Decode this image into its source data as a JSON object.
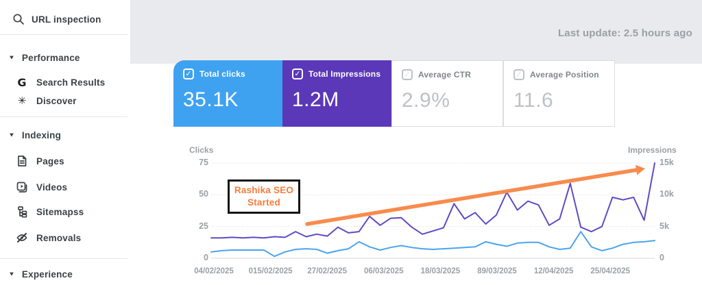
{
  "header": {
    "last_update": "Last update: 2.5 hours ago"
  },
  "sidebar": {
    "url_inspection": "URL inspection",
    "sections": [
      {
        "label": "Performance",
        "items": [
          {
            "label": "Search Results"
          },
          {
            "label": "Discover"
          }
        ]
      },
      {
        "label": "Indexing",
        "items": [
          {
            "label": "Pages"
          },
          {
            "label": "Videos"
          },
          {
            "label": "Sitemapss"
          },
          {
            "label": "Removals"
          }
        ]
      },
      {
        "label": "Experience",
        "items": []
      }
    ]
  },
  "metric_cards": [
    {
      "label": "Total clicks",
      "value": "35.1K",
      "checked": true,
      "bg": "#3FA2F1",
      "check_glyph": "✓"
    },
    {
      "label": "Total Impressions",
      "value": "1.2M",
      "checked": true,
      "bg": "#5B38B8",
      "check_glyph": "✓"
    },
    {
      "label": "Average CTR",
      "value": "2.9%",
      "checked": false,
      "bg": "#FFFFFF",
      "check_glyph": "✓"
    },
    {
      "label": "Average Position",
      "value": "11.6",
      "checked": false,
      "bg": "#FFFFFF",
      "check_glyph": "✓"
    }
  ],
  "chart_data": {
    "type": "line",
    "title": "",
    "grid": true,
    "x_tick_labels": [
      "04/02/2025",
      "015/02/2025",
      "27/02/2025",
      "06/03/2025",
      "18/03/2025",
      "89/03/2025",
      "12/04/2025",
      "25/04/2025"
    ],
    "left_axis": {
      "label": "Clicks",
      "ticks": [
        "75",
        "50",
        "25",
        "0"
      ],
      "min": 0,
      "max": 75
    },
    "right_axis": {
      "label": "Impressions",
      "ticks": [
        "15k",
        "10k",
        "5k",
        "0"
      ],
      "min": 0,
      "max": 15000
    },
    "series": [
      {
        "name": "Total clicks",
        "axis": "left",
        "color": "#4BA3F0",
        "values": [
          5,
          6,
          6.5,
          6.5,
          6.5,
          6.5,
          1.5,
          5,
          7,
          7.5,
          7,
          4,
          6,
          7.5,
          13,
          9,
          6.5,
          8.5,
          10,
          8.5,
          7.5,
          7,
          7.5,
          8,
          8.5,
          9,
          13,
          11,
          9.5,
          12,
          12.5,
          12.5,
          9,
          7,
          8,
          21,
          9,
          6,
          8,
          11,
          12.5,
          13,
          14
        ]
      },
      {
        "name": "Total Impressions",
        "axis": "right",
        "color": "#5F48C7",
        "values": [
          3200,
          3200,
          3300,
          3200,
          3300,
          3200,
          3400,
          3300,
          4200,
          3400,
          3800,
          3500,
          4900,
          4000,
          4200,
          6600,
          5200,
          6300,
          6400,
          4900,
          3800,
          4300,
          4800,
          8600,
          6200,
          7200,
          5400,
          6800,
          10400,
          7600,
          9000,
          8400,
          5200,
          6200,
          11800,
          4900,
          4200,
          5000,
          9600,
          9200,
          9600,
          6000,
          15000
        ]
      }
    ],
    "annotation": {
      "line1": "Rashika SEO",
      "line2": "Started",
      "text_color": "#F97B38",
      "border_color": "#141414"
    },
    "arrow": {
      "color": "#F88B4D",
      "direction": "up-right"
    }
  }
}
